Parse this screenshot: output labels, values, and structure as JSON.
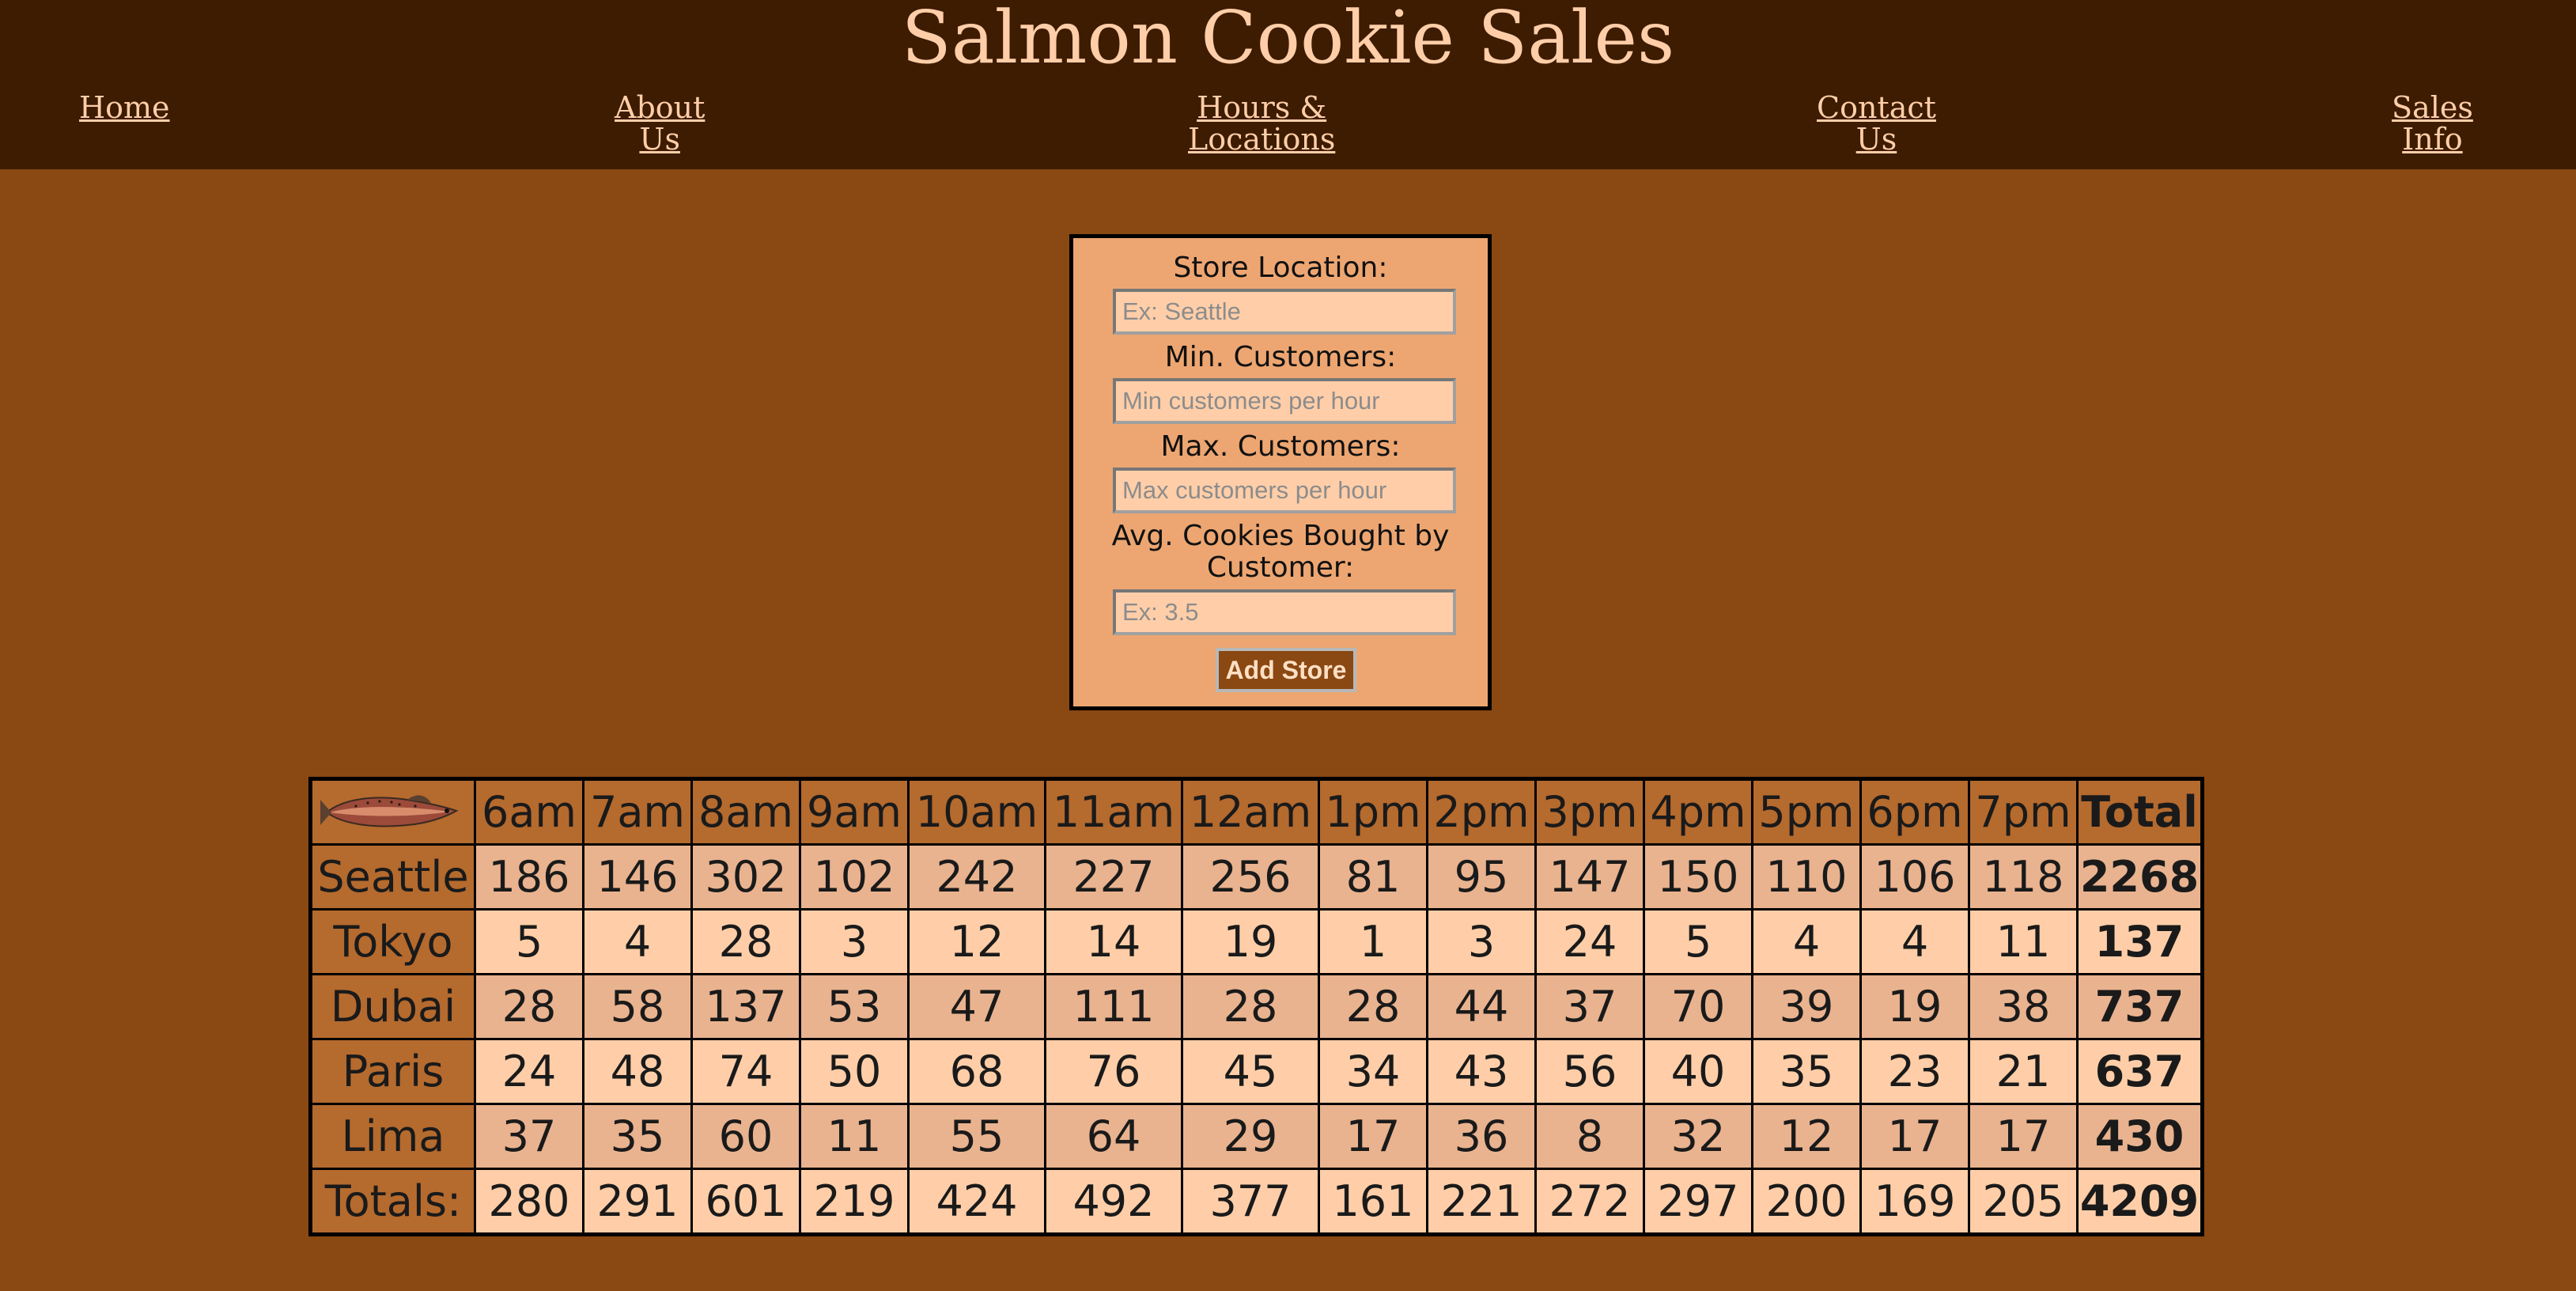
{
  "header": {
    "title": "Salmon Cookie Sales",
    "nav": [
      {
        "line1": "Home",
        "line2": ""
      },
      {
        "line1": "About",
        "line2": "Us"
      },
      {
        "line1": "Hours &",
        "line2": "Locations"
      },
      {
        "line1": "Contact",
        "line2": "Us"
      },
      {
        "line1": "Sales",
        "line2": "Info"
      }
    ]
  },
  "form": {
    "location_label": "Store Location:",
    "location_placeholder": "Ex: Seattle",
    "min_label": "Min. Customers:",
    "min_placeholder": "Min customers per hour",
    "max_label": "Max. Customers:",
    "max_placeholder": "Max customers per hour",
    "avg_label": "Avg. Cookies Bought by Customer:",
    "avg_placeholder": "Ex: 3.5",
    "submit_label": "Add Store"
  },
  "table": {
    "corner_icon": "salmon-icon",
    "hours": [
      "6am",
      "7am",
      "8am",
      "9am",
      "10am",
      "11am",
      "12am",
      "1pm",
      "2pm",
      "3pm",
      "4pm",
      "5pm",
      "6pm",
      "7pm"
    ],
    "total_header": "Total",
    "rows": [
      {
        "name": "Seattle",
        "values": [
          "186",
          "146",
          "302",
          "102",
          "242",
          "227",
          "256",
          "81",
          "95",
          "147",
          "150",
          "110",
          "106",
          "118"
        ],
        "total": "2268"
      },
      {
        "name": "Tokyo",
        "values": [
          "5",
          "4",
          "28",
          "3",
          "12",
          "14",
          "19",
          "1",
          "3",
          "24",
          "5",
          "4",
          "4",
          "11"
        ],
        "total": "137"
      },
      {
        "name": "Dubai",
        "values": [
          "28",
          "58",
          "137",
          "53",
          "47",
          "111",
          "28",
          "28",
          "44",
          "37",
          "70",
          "39",
          "19",
          "38"
        ],
        "total": "737"
      },
      {
        "name": "Paris",
        "values": [
          "24",
          "48",
          "74",
          "50",
          "68",
          "76",
          "45",
          "34",
          "43",
          "56",
          "40",
          "35",
          "23",
          "21"
        ],
        "total": "637"
      },
      {
        "name": "Lima",
        "values": [
          "37",
          "35",
          "60",
          "11",
          "55",
          "64",
          "29",
          "17",
          "36",
          "8",
          "32",
          "12",
          "17",
          "17"
        ],
        "total": "430"
      }
    ],
    "totals_label": "Totals:",
    "totals": [
      "280",
      "291",
      "601",
      "219",
      "424",
      "492",
      "377",
      "161",
      "221",
      "272",
      "297",
      "200",
      "169",
      "205"
    ],
    "grand_total": "4209"
  }
}
